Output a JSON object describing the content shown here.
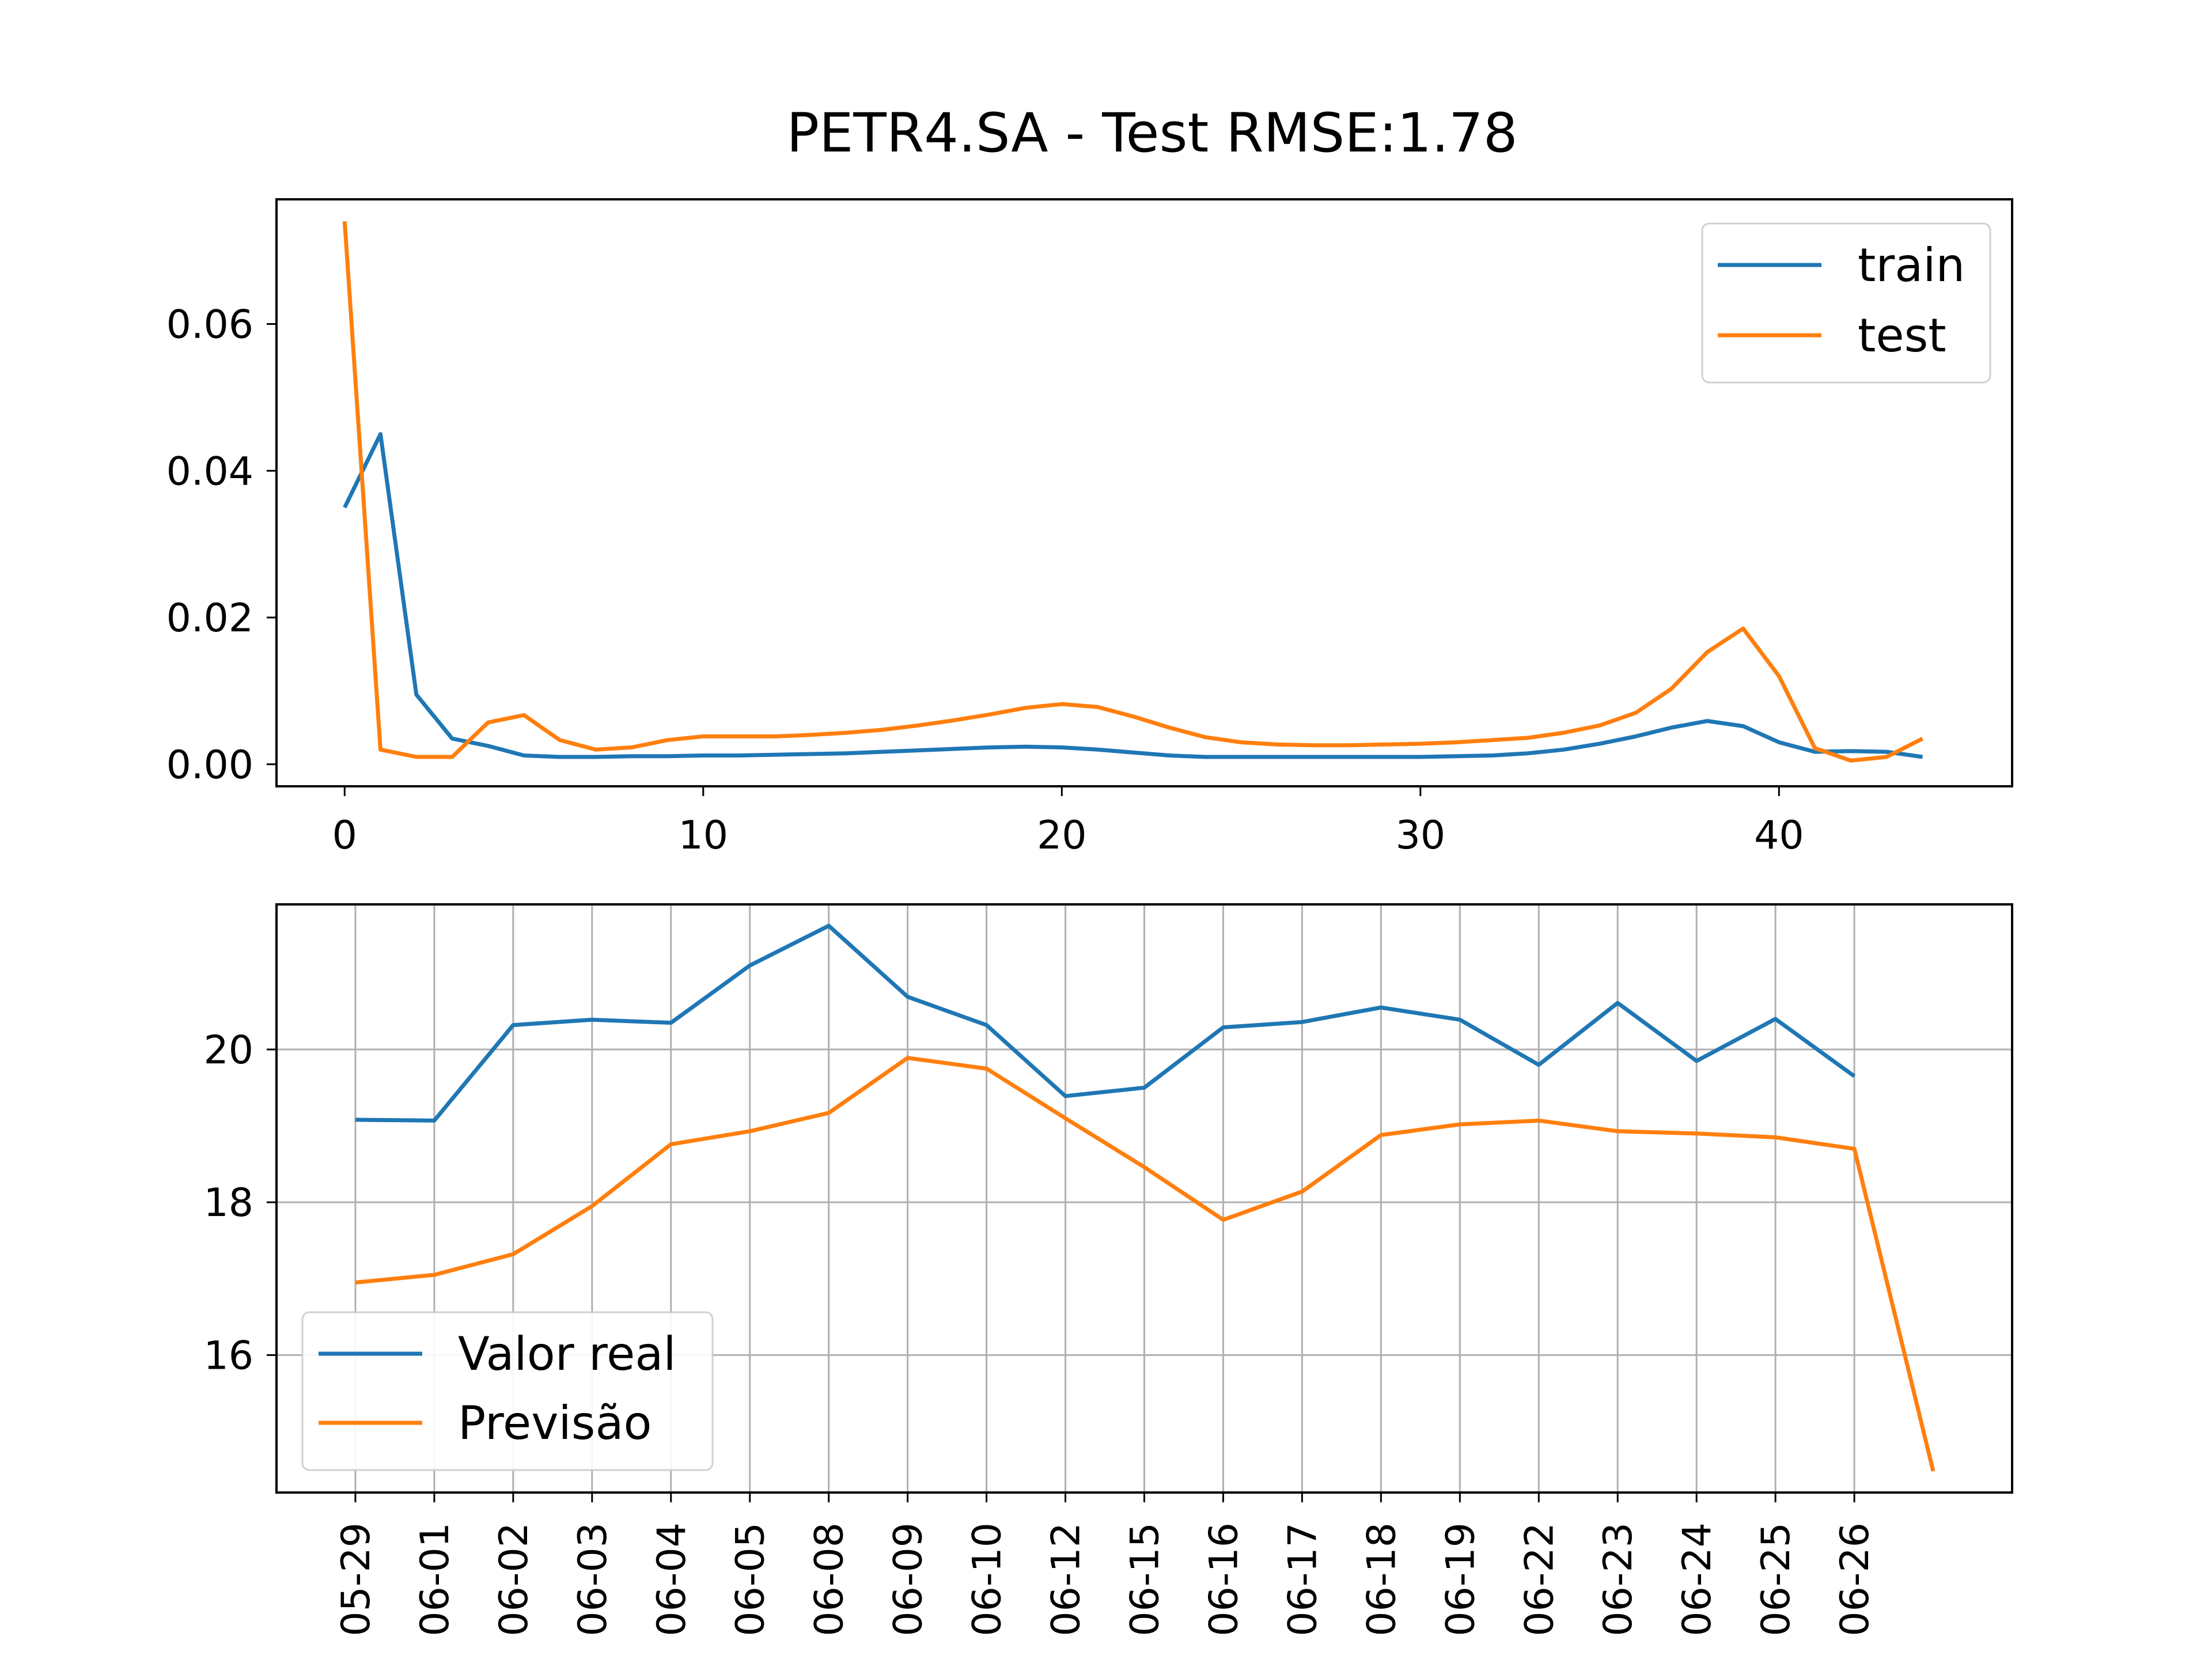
{
  "title": "PETR4.SA - Test RMSE:1.78",
  "colors": {
    "blue": "#1f77b4",
    "orange": "#ff7f0e"
  },
  "chart_data": [
    {
      "type": "line",
      "legend_placement": "upper right",
      "grid": false,
      "xlim": [
        -1.9,
        46.5
      ],
      "ylim": [
        -0.003,
        0.077
      ],
      "xticks": [
        0,
        10,
        20,
        30,
        40
      ],
      "xtick_labels": [
        "0",
        "10",
        "20",
        "30",
        "40"
      ],
      "yticks": [
        0.0,
        0.02,
        0.04,
        0.06
      ],
      "ytick_labels": [
        "0.00",
        "0.02",
        "0.04",
        "0.06"
      ],
      "series": [
        {
          "name": "train",
          "color": "#1f77b4",
          "x": [
            0,
            1,
            2,
            3,
            4,
            5,
            6,
            7,
            8,
            9,
            10,
            11,
            12,
            13,
            14,
            15,
            16,
            17,
            18,
            19,
            20,
            21,
            22,
            23,
            24,
            25,
            26,
            27,
            28,
            29,
            30,
            31,
            32,
            33,
            34,
            35,
            36,
            37,
            38,
            39,
            40,
            41,
            42,
            43,
            44
          ],
          "values": [
            0.035,
            0.045,
            0.0095,
            0.0035,
            0.0025,
            0.0012,
            0.001,
            0.001,
            0.0011,
            0.0011,
            0.0012,
            0.0012,
            0.0013,
            0.0014,
            0.0015,
            0.0017,
            0.0019,
            0.0021,
            0.0023,
            0.0024,
            0.0023,
            0.002,
            0.0016,
            0.0012,
            0.001,
            0.001,
            0.001,
            0.001,
            0.001,
            0.001,
            0.001,
            0.0011,
            0.0012,
            0.0015,
            0.002,
            0.0028,
            0.0038,
            0.005,
            0.0059,
            0.0052,
            0.003,
            0.0017,
            0.0018,
            0.0017,
            0.001
          ]
        },
        {
          "name": "test",
          "color": "#ff7f0e",
          "x": [
            0,
            1,
            2,
            3,
            4,
            5,
            6,
            7,
            8,
            9,
            10,
            11,
            12,
            13,
            14,
            15,
            16,
            17,
            18,
            19,
            20,
            21,
            22,
            23,
            24,
            25,
            26,
            27,
            28,
            29,
            30,
            31,
            32,
            33,
            34,
            35,
            36,
            37,
            38,
            39,
            40,
            41,
            42,
            43,
            44
          ],
          "values": [
            0.074,
            0.002,
            0.001,
            0.001,
            0.0057,
            0.0067,
            0.0033,
            0.002,
            0.0023,
            0.0033,
            0.0038,
            0.0038,
            0.0038,
            0.004,
            0.0043,
            0.0047,
            0.0053,
            0.006,
            0.0068,
            0.0077,
            0.0082,
            0.0078,
            0.0065,
            0.005,
            0.0037,
            0.003,
            0.0027,
            0.0026,
            0.0026,
            0.0027,
            0.0028,
            0.003,
            0.0033,
            0.0036,
            0.0043,
            0.0053,
            0.007,
            0.0103,
            0.0153,
            0.0185,
            0.012,
            0.0022,
            0.0005,
            0.001,
            0.0035
          ]
        }
      ]
    },
    {
      "type": "line",
      "legend_placement": "lower left",
      "grid": true,
      "xlim": [
        -1.0,
        21.0
      ],
      "ylim": [
        14.2,
        21.9
      ],
      "yticks": [
        16,
        18,
        20
      ],
      "ytick_labels": [
        "16",
        "18",
        "20"
      ],
      "categories": [
        "05-29",
        "06-01",
        "06-02",
        "06-03",
        "06-04",
        "06-05",
        "06-08",
        "06-09",
        "06-10",
        "06-12",
        "06-15",
        "06-16",
        "06-17",
        "06-18",
        "06-19",
        "06-22",
        "06-23",
        "06-24",
        "06-25",
        "06-26"
      ],
      "category_labels": [
        "05-29",
        "06-01",
        "06-02",
        "06-03",
        "06-04",
        "06-05",
        "06-08",
        "06-09",
        "06-10",
        "06-12",
        "06-15",
        "06-16",
        "06-17",
        "06-18",
        "06-19",
        "06-22",
        "06-23",
        "06-24",
        "06-25",
        "06-26"
      ],
      "series": [
        {
          "name": "Valor real",
          "color": "#1f77b4",
          "x": [
            0,
            1,
            2,
            3,
            4,
            5,
            6,
            7,
            8,
            9,
            10,
            11,
            12,
            13,
            14,
            15,
            16,
            17,
            18,
            19
          ],
          "values": [
            19.08,
            19.07,
            20.32,
            20.39,
            20.35,
            21.1,
            21.62,
            20.69,
            20.32,
            19.39,
            19.5,
            20.29,
            20.36,
            20.55,
            20.39,
            19.8,
            20.61,
            19.85,
            20.4,
            19.65
          ]
        },
        {
          "name": "Previsão",
          "color": "#ff7f0e",
          "x": [
            0,
            1,
            2,
            3,
            4,
            5,
            6,
            7,
            8,
            9,
            10,
            11,
            12,
            13,
            14,
            15,
            16,
            17,
            18,
            19,
            20
          ],
          "values": [
            16.95,
            17.05,
            17.32,
            17.95,
            18.76,
            18.93,
            19.17,
            19.89,
            19.75,
            19.1,
            18.46,
            17.77,
            18.14,
            18.88,
            19.02,
            19.07,
            18.93,
            18.9,
            18.85,
            18.7,
            14.48
          ]
        }
      ]
    }
  ]
}
